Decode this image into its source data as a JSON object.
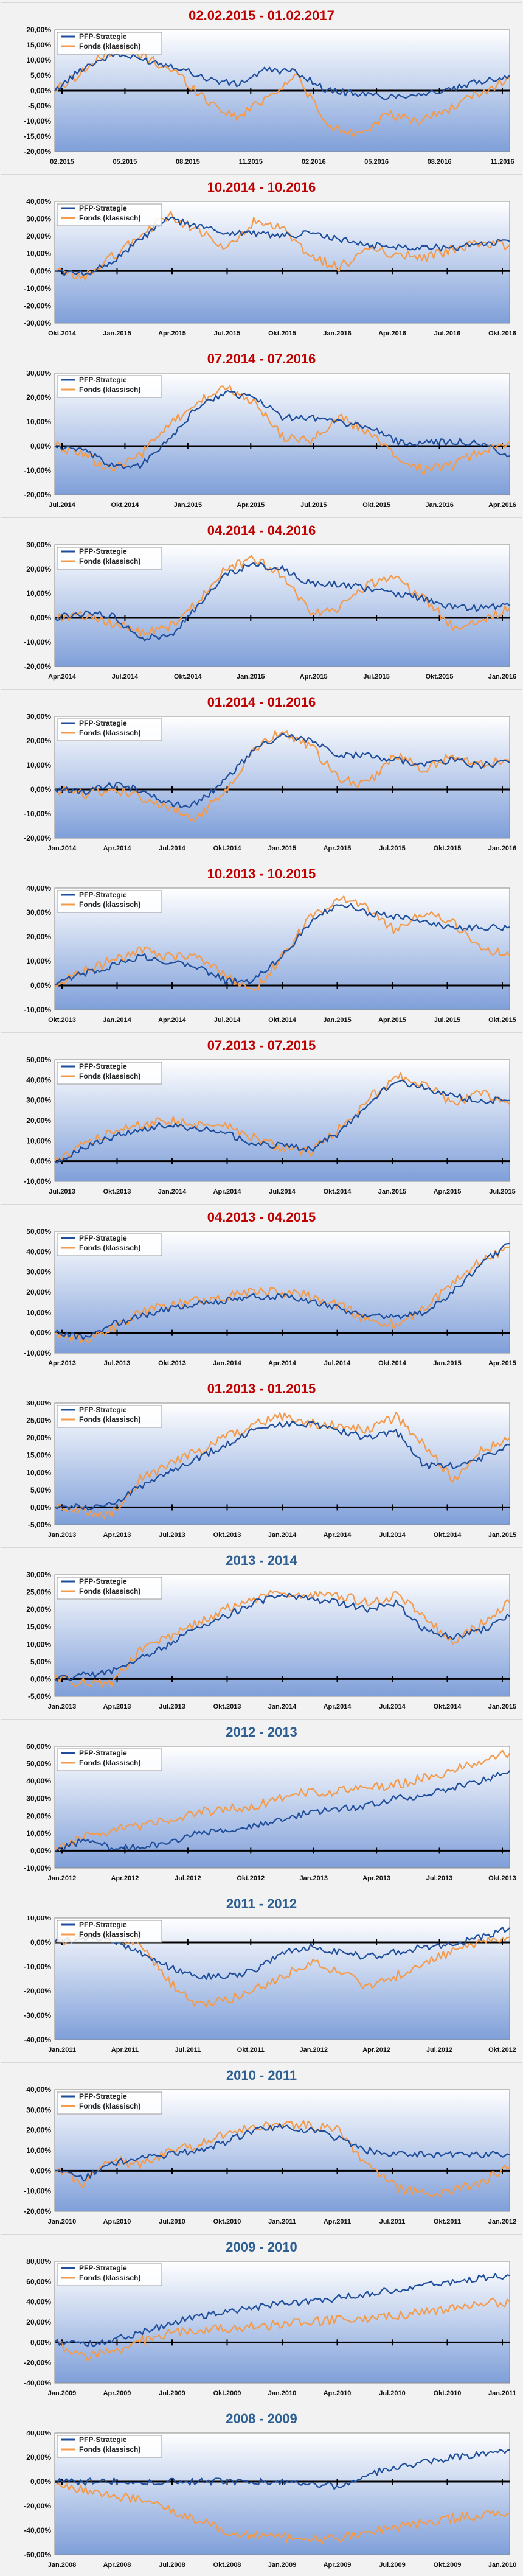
{
  "legend": {
    "strategy": "PFP-Strategie",
    "fund": "Fonds (klassisch)"
  },
  "colors": {
    "strategy": "#1f4e9c",
    "fund": "#f39a4b",
    "title_red": "#c00000",
    "title_blue": "#2e5f93",
    "plot_top": "#ffffff",
    "plot_bottom": "#7f9fd9",
    "zero_line": "#000000"
  },
  "chart_data": [
    {
      "type": "line",
      "title": "02.02.2015 - 01.02.2017",
      "title_color": "red",
      "ylim": [
        -20,
        20
      ],
      "yticks": [
        "20,00%",
        "15,00%",
        "10,00%",
        "5,00%",
        "0,00%",
        "-5,00%",
        "-10,00%",
        "-15,00%",
        "-20,00%"
      ],
      "xticks": [
        "02.2015",
        "05.2015",
        "08.2015",
        "11.2015",
        "02.2016",
        "05.2016",
        "08.2016",
        "11.2016"
      ],
      "legend": "top-left",
      "series": [
        {
          "name": "PFP-Strategie",
          "values": [
            0,
            8,
            12,
            10,
            8,
            4,
            2,
            7,
            6,
            0,
            -1,
            -2,
            -1,
            0,
            3,
            5
          ]
        },
        {
          "name": "Fonds (klassisch)",
          "values": [
            0,
            7,
            14,
            11,
            6,
            -3,
            -9,
            -2,
            5,
            -12,
            -14,
            -8,
            -10,
            -6,
            -1,
            4
          ]
        }
      ]
    },
    {
      "type": "line",
      "title": "10.2014 - 10.2016",
      "title_color": "red",
      "ylim": [
        -30,
        40
      ],
      "yticks": [
        "40,00%",
        "30,00%",
        "20,00%",
        "10,00%",
        "0,00%",
        "-10,00%",
        "-20,00%",
        "-30,00%"
      ],
      "xticks": [
        "Okt.2014",
        "Jan.2015",
        "Apr.2015",
        "Jul.2015",
        "Okt.2015",
        "Jan.2016",
        "Apr.2016",
        "Jul.2016",
        "Okt.2016"
      ],
      "legend": "top-left",
      "series": [
        {
          "name": "PFP-Strategie",
          "values": [
            0,
            -2,
            5,
            18,
            30,
            26,
            22,
            22,
            20,
            22,
            18,
            15,
            14,
            14,
            13,
            16,
            17
          ]
        },
        {
          "name": "Fonds (klassisch)",
          "values": [
            0,
            -4,
            8,
            20,
            32,
            24,
            12,
            28,
            24,
            8,
            2,
            12,
            10,
            8,
            12,
            16,
            15
          ]
        }
      ]
    },
    {
      "type": "line",
      "title": "07.2014 - 07.2016",
      "title_color": "red",
      "ylim": [
        -20,
        30
      ],
      "yticks": [
        "30,00%",
        "20,00%",
        "10,00%",
        "0,00%",
        "-10,00%",
        "-20,00%"
      ],
      "xticks": [
        "Jul.2014",
        "Okt.2014",
        "Jan.2015",
        "Apr.2015",
        "Jul.2015",
        "Okt.2015",
        "Jan.2016",
        "Apr.2016"
      ],
      "legend": "top-left",
      "series": [
        {
          "name": "PFP-Strategie",
          "values": [
            0,
            -2,
            -8,
            -8,
            2,
            16,
            22,
            20,
            12,
            12,
            10,
            8,
            2,
            1,
            2,
            1,
            -4
          ]
        },
        {
          "name": "Fonds (klassisch)",
          "values": [
            0,
            -3,
            -10,
            -4,
            8,
            18,
            24,
            18,
            4,
            2,
            12,
            6,
            -4,
            -10,
            -8,
            -2,
            2
          ]
        }
      ]
    },
    {
      "type": "line",
      "title": "04.2014 - 04.2016",
      "title_color": "red",
      "ylim": [
        -20,
        30
      ],
      "yticks": [
        "30,00%",
        "20,00%",
        "10,00%",
        "0,00%",
        "-10,00%",
        "-20,00%"
      ],
      "xticks": [
        "Apr.2014",
        "Jul.2014",
        "Okt.2014",
        "Jan.2015",
        "Apr.2015",
        "Jul.2015",
        "Okt.2015",
        "Jan.2016"
      ],
      "legend": "top-left",
      "series": [
        {
          "name": "PFP-Strategie",
          "values": [
            0,
            2,
            1,
            -8,
            -8,
            4,
            18,
            22,
            20,
            14,
            14,
            12,
            10,
            8,
            4,
            4,
            5
          ]
        },
        {
          "name": "Fonds (klassisch)",
          "values": [
            0,
            1,
            -2,
            -6,
            -4,
            6,
            20,
            24,
            18,
            2,
            4,
            14,
            16,
            8,
            -4,
            -2,
            4
          ]
        }
      ]
    },
    {
      "type": "line",
      "title": "01.2014 - 01.2016",
      "title_color": "red",
      "ylim": [
        -20,
        30
      ],
      "yticks": [
        "30,00%",
        "20,00%",
        "10,00%",
        "0,00%",
        "-10,00%",
        "-20,00%"
      ],
      "xticks": [
        "Jan.2014",
        "Apr.2014",
        "Jul.2014",
        "Okt.2014",
        "Jan.2015",
        "Apr.2015",
        "Jul.2015",
        "Okt.2015",
        "Jan.2016"
      ],
      "legend": "top-left",
      "series": [
        {
          "name": "PFP-Strategie",
          "values": [
            0,
            -1,
            2,
            0,
            -6,
            -6,
            4,
            16,
            22,
            20,
            14,
            14,
            12,
            10,
            12,
            10,
            11
          ]
        },
        {
          "name": "Fonds (klassisch)",
          "values": [
            0,
            -2,
            0,
            -3,
            -8,
            -12,
            0,
            16,
            24,
            18,
            4,
            2,
            14,
            8,
            14,
            10,
            12
          ]
        }
      ]
    },
    {
      "type": "line",
      "title": "10.2013 - 10.2015",
      "title_color": "red",
      "ylim": [
        -10,
        40
      ],
      "yticks": [
        "40,00%",
        "30,00%",
        "20,00%",
        "10,00%",
        "0,00%",
        "-10,00%"
      ],
      "xticks": [
        "Okt.2013",
        "Jan.2014",
        "Apr.2014",
        "Jul.2014",
        "Okt.2014",
        "Jan.2015",
        "Apr.2015",
        "Jul.2015",
        "Okt.2015"
      ],
      "legend": "top-left",
      "series": [
        {
          "name": "PFP-Strategie",
          "values": [
            0,
            5,
            8,
            12,
            10,
            8,
            2,
            2,
            12,
            26,
            34,
            30,
            28,
            26,
            24,
            24,
            24
          ]
        },
        {
          "name": "Fonds (klassisch)",
          "values": [
            0,
            6,
            10,
            14,
            12,
            12,
            4,
            -2,
            12,
            28,
            36,
            32,
            22,
            30,
            26,
            16,
            12
          ]
        }
      ]
    },
    {
      "type": "line",
      "title": "07.2013 - 07.2015",
      "title_color": "red",
      "ylim": [
        -10,
        50
      ],
      "yticks": [
        "50,00%",
        "40,00%",
        "30,00%",
        "20,00%",
        "10,00%",
        "0,00%",
        "-10,00%"
      ],
      "xticks": [
        "Jul.2013",
        "Okt.2013",
        "Jan.2014",
        "Apr.2014",
        "Jul.2014",
        "Okt.2014",
        "Jan.2015",
        "Apr.2015",
        "Jul.2015"
      ],
      "legend": "top-left",
      "series": [
        {
          "name": "PFP-Strategie",
          "values": [
            0,
            6,
            12,
            16,
            18,
            16,
            14,
            8,
            8,
            6,
            14,
            28,
            40,
            36,
            32,
            30,
            30
          ]
        },
        {
          "name": "Fonds (klassisch)",
          "values": [
            0,
            8,
            14,
            18,
            20,
            18,
            18,
            12,
            6,
            4,
            16,
            30,
            42,
            38,
            28,
            34,
            28
          ]
        }
      ]
    },
    {
      "type": "line",
      "title": "04.2013 - 04.2015",
      "title_color": "red",
      "ylim": [
        -10,
        50
      ],
      "yticks": [
        "50,00%",
        "40,00%",
        "30,00%",
        "20,00%",
        "10,00%",
        "0,00%",
        "-10,00%"
      ],
      "xticks": [
        "Apr.2013",
        "Jul.2013",
        "Okt.2013",
        "Jan.2014",
        "Apr.2014",
        "Jul.2014",
        "Okt.2014",
        "Jan.2015",
        "Apr.2015"
      ],
      "legend": "top-left",
      "series": [
        {
          "name": "PFP-Strategie",
          "values": [
            0,
            -2,
            4,
            8,
            12,
            14,
            16,
            18,
            18,
            16,
            12,
            8,
            8,
            10,
            20,
            34,
            44
          ]
        },
        {
          "name": "Fonds (klassisch)",
          "values": [
            0,
            -4,
            2,
            10,
            14,
            16,
            18,
            20,
            20,
            18,
            14,
            6,
            4,
            12,
            24,
            36,
            42
          ]
        }
      ]
    },
    {
      "type": "line",
      "title": "01.2013 - 01.2015",
      "title_color": "red",
      "ylim": [
        -5,
        30
      ],
      "yticks": [
        "30,00%",
        "25,00%",
        "20,00%",
        "15,00%",
        "10,00%",
        "5,00%",
        "0,00%",
        "-5,00%"
      ],
      "xticks": [
        "Jan.2013",
        "Apr.2013",
        "Jul.2013",
        "Okt.2013",
        "Jan.2014",
        "Apr.2014",
        "Jul.2014",
        "Okt.2014",
        "Jan.2015"
      ],
      "legend": "top-left",
      "series": [
        {
          "name": "PFP-Strategie",
          "values": [
            0,
            0,
            1,
            6,
            10,
            14,
            18,
            22,
            24,
            24,
            22,
            20,
            22,
            12,
            12,
            14,
            18
          ]
        },
        {
          "name": "Fonds (klassisch)",
          "values": [
            0,
            -1,
            -2,
            8,
            12,
            16,
            20,
            24,
            26,
            24,
            24,
            22,
            26,
            18,
            8,
            16,
            20
          ]
        }
      ]
    },
    {
      "type": "line",
      "title": "2013 - 2014",
      "title_color": "blue",
      "ylim": [
        -5,
        30
      ],
      "yticks": [
        "30,00%",
        "25,00%",
        "20,00%",
        "15,00%",
        "10,00%",
        "5,00%",
        "0,00%",
        "-5,00%"
      ],
      "xticks": [
        "Jan.2013",
        "Apr.2013",
        "Jul.2013",
        "Okt.2013",
        "Jan.2014",
        "Apr.2014",
        "Jul.2014",
        "Okt.2014",
        "Jan.2015"
      ],
      "legend": "top-left",
      "series": [
        {
          "name": "PFP-Strategie",
          "values": [
            0,
            1,
            2,
            6,
            10,
            15,
            18,
            22,
            24,
            23,
            22,
            20,
            22,
            14,
            12,
            14,
            18
          ]
        },
        {
          "name": "Fonds (klassisch)",
          "values": [
            0,
            -1,
            -1,
            8,
            12,
            16,
            20,
            23,
            25,
            24,
            24,
            22,
            24,
            18,
            10,
            16,
            22
          ]
        }
      ]
    },
    {
      "type": "line",
      "title": "2012 - 2013",
      "title_color": "blue",
      "ylim": [
        -10,
        60
      ],
      "yticks": [
        "60,00%",
        "50,00%",
        "40,00%",
        "30,00%",
        "20,00%",
        "10,00%",
        "0,00%",
        "-10,00%"
      ],
      "xticks": [
        "Jan.2012",
        "Apr.2012",
        "Jul.2012",
        "Okt.2012",
        "Jan.2013",
        "Apr.2013",
        "Jul.2013",
        "Okt.2013"
      ],
      "legend": "top-left",
      "series": [
        {
          "name": "PFP-Strategie",
          "values": [
            0,
            6,
            2,
            2,
            4,
            10,
            12,
            14,
            18,
            22,
            24,
            26,
            30,
            32,
            36,
            40,
            46
          ]
        },
        {
          "name": "Fonds (klassisch)",
          "values": [
            0,
            8,
            12,
            14,
            18,
            22,
            24,
            26,
            30,
            34,
            34,
            36,
            38,
            42,
            46,
            52,
            56
          ]
        }
      ]
    },
    {
      "type": "line",
      "title": "2011 - 2012",
      "title_color": "blue",
      "ylim": [
        -40,
        10
      ],
      "yticks": [
        "10,00%",
        "0,00%",
        "-10,00%",
        "-20,00%",
        "-30,00%",
        "-40,00%"
      ],
      "xticks": [
        "Jan.2011",
        "Apr.2011",
        "Jul.2011",
        "Okt.2011",
        "Jan.2012",
        "Apr.2012",
        "Jul.2012",
        "Okt.2012"
      ],
      "legend": "top-left",
      "series": [
        {
          "name": "PFP-Strategie",
          "values": [
            0,
            2,
            1,
            -4,
            -10,
            -14,
            -14,
            -12,
            -4,
            -2,
            -4,
            -6,
            -4,
            -2,
            -1,
            2,
            6
          ]
        },
        {
          "name": "Fonds (klassisch)",
          "values": [
            0,
            3,
            2,
            0,
            -16,
            -26,
            -24,
            -20,
            -14,
            -8,
            -12,
            -18,
            -14,
            -8,
            -4,
            0,
            2
          ]
        }
      ]
    },
    {
      "type": "line",
      "title": "2010 - 2011",
      "title_color": "blue",
      "ylim": [
        -20,
        40
      ],
      "yticks": [
        "40,00%",
        "30,00%",
        "20,00%",
        "10,00%",
        "0,00%",
        "-10,00%",
        "-20,00%"
      ],
      "xticks": [
        "Jan.2010",
        "Apr.2010",
        "Jul.2010",
        "Okt.2010",
        "Jan.2011",
        "Apr.2011",
        "Jul.2011",
        "Okt.2011",
        "Jan.2012"
      ],
      "legend": "top-left",
      "series": [
        {
          "name": "PFP-Strategie",
          "values": [
            0,
            -4,
            4,
            6,
            8,
            10,
            14,
            20,
            22,
            20,
            16,
            10,
            8,
            8,
            8,
            8,
            8
          ]
        },
        {
          "name": "Fonds (klassisch)",
          "values": [
            0,
            -6,
            6,
            2,
            10,
            12,
            18,
            22,
            24,
            22,
            20,
            2,
            -8,
            -12,
            -10,
            -6,
            2
          ]
        }
      ]
    },
    {
      "type": "line",
      "title": "2009 - 2010",
      "title_color": "blue",
      "ylim": [
        -40,
        80
      ],
      "yticks": [
        "80,00%",
        "60,00%",
        "40,00%",
        "20,00%",
        "0,00%",
        "-20,00%",
        "-40,00%"
      ],
      "xticks": [
        "Jan.2009",
        "Apr.2009",
        "Jul.2009",
        "Okt.2009",
        "Jan.2010",
        "Apr.2010",
        "Jul.2010",
        "Okt.2010",
        "Jan.2011"
      ],
      "legend": "top-left",
      "series": [
        {
          "name": "PFP-Strategie",
          "values": [
            0,
            -2,
            2,
            10,
            18,
            26,
            30,
            34,
            38,
            40,
            44,
            48,
            52,
            56,
            60,
            64,
            66
          ]
        },
        {
          "name": "Fonds (klassisch)",
          "values": [
            0,
            -14,
            -10,
            2,
            8,
            12,
            14,
            16,
            18,
            20,
            22,
            24,
            26,
            30,
            34,
            38,
            40
          ]
        }
      ]
    },
    {
      "type": "line",
      "title": "2008 - 2009",
      "title_color": "blue",
      "ylim": [
        -60,
        40
      ],
      "yticks": [
        "40,00%",
        "20,00%",
        "0,00%",
        "-20,00%",
        "-40,00%",
        "-60,00%"
      ],
      "xticks": [
        "Jan.2008",
        "Apr.2008",
        "Jul.2008",
        "Okt.2008",
        "Jan.2009",
        "Apr.2009",
        "Jul.2009",
        "Okt.2009",
        "Jan.2010"
      ],
      "legend": "top-left",
      "series": [
        {
          "name": "PFP-Strategie",
          "values": [
            0,
            0,
            0,
            0,
            0,
            0,
            0,
            0,
            0,
            -2,
            -4,
            6,
            12,
            16,
            20,
            22,
            26
          ]
        },
        {
          "name": "Fonds (klassisch)",
          "values": [
            0,
            -6,
            -10,
            -16,
            -22,
            -32,
            -40,
            -44,
            -46,
            -48,
            -46,
            -42,
            -38,
            -34,
            -30,
            -28,
            -26
          ]
        }
      ]
    }
  ]
}
